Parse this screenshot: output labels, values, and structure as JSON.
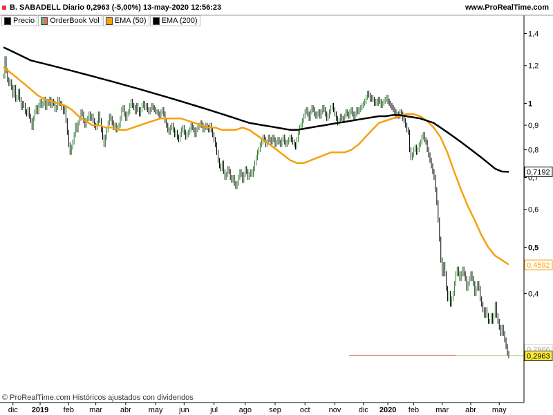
{
  "header": {
    "title": "B. SABADELL Diario 0,2963 (-5,00%) 13-may-2020 12:56:23",
    "brand": "www.ProRealTime.com"
  },
  "legend": [
    {
      "label": "Precio",
      "color": "#000000"
    },
    {
      "label": "OrderBook Vol",
      "color": "#66bb66"
    },
    {
      "label": "EMA (50)",
      "color": "#f5a10c"
    },
    {
      "label": "EMA (200)",
      "color": "#000000"
    }
  ],
  "footer": "© ProRealTime.com  Históricos ajustados con dividendos",
  "chart_data": {
    "type": "line",
    "yscale": "log",
    "ylim": [
      0.265,
      1.44
    ],
    "y_ticks": [
      {
        "value": 1.4,
        "label": "1,4",
        "bold": false
      },
      {
        "value": 1.2,
        "label": "1,2",
        "bold": false
      },
      {
        "value": 1.0,
        "label": "1",
        "bold": true
      },
      {
        "value": 0.9,
        "label": "0,9",
        "bold": false
      },
      {
        "value": 0.8,
        "label": "0,8",
        "bold": false
      },
      {
        "value": 0.7,
        "label": "0,7",
        "bold": false
      },
      {
        "value": 0.6,
        "label": "0,6",
        "bold": false
      },
      {
        "value": 0.5,
        "label": "0,5",
        "bold": true
      },
      {
        "value": 0.4,
        "label": "0,4",
        "bold": false
      }
    ],
    "x_ticks": [
      {
        "label": "dic",
        "bold": false
      },
      {
        "label": "2019",
        "bold": true
      },
      {
        "label": "feb",
        "bold": false
      },
      {
        "label": "mar",
        "bold": false
      },
      {
        "label": "abr",
        "bold": false
      },
      {
        "label": "may",
        "bold": false
      },
      {
        "label": "jun",
        "bold": false
      },
      {
        "label": "jul",
        "bold": false
      },
      {
        "label": "ago",
        "bold": false
      },
      {
        "label": "sep",
        "bold": false
      },
      {
        "label": "oct",
        "bold": false
      },
      {
        "label": "nov",
        "bold": false
      },
      {
        "label": "dic",
        "bold": false
      },
      {
        "label": "2020",
        "bold": true
      },
      {
        "label": "feb",
        "bold": false
      },
      {
        "label": "mar",
        "bold": false
      },
      {
        "label": "abr",
        "bold": false
      },
      {
        "label": "may",
        "bold": false
      }
    ],
    "x_tick_index": [
      7,
      27,
      48,
      68,
      90,
      112,
      133,
      155,
      178,
      200,
      222,
      244,
      265,
      283,
      302,
      323,
      344,
      365
    ],
    "price": [
      1.14,
      1.24,
      1.17,
      1.12,
      1.1,
      1.11,
      1.08,
      1.04,
      1.08,
      1.02,
      1.03,
      1.06,
      1.02,
      0.98,
      1.0,
      0.99,
      0.96,
      0.95,
      0.97,
      0.94,
      0.92,
      0.89,
      0.93,
      0.96,
      0.98,
      0.96,
      0.99,
      1.01,
      0.99,
      1.0,
      1.02,
      0.98,
      1.01,
      1.0,
      1.02,
      0.99,
      1.01,
      1.0,
      0.97,
      0.98,
      1.02,
      1.0,
      1.0,
      0.98,
      0.96,
      0.98,
      0.92,
      0.87,
      0.82,
      0.79,
      0.81,
      0.83,
      0.86,
      0.9,
      0.88,
      0.91,
      0.93,
      0.96,
      0.95,
      0.92,
      0.9,
      0.92,
      0.93,
      0.95,
      0.93,
      0.94,
      0.92,
      0.9,
      0.89,
      0.91,
      0.95,
      0.92,
      0.88,
      0.85,
      0.82,
      0.85,
      0.88,
      0.91,
      0.94,
      0.93,
      0.91,
      0.89,
      0.9,
      0.88,
      0.89,
      0.9,
      0.93,
      0.97,
      0.98,
      0.95,
      0.93,
      0.95,
      0.96,
      0.99,
      1.01,
      0.99,
      0.98,
      0.96,
      0.99,
      0.97,
      0.95,
      0.97,
      0.99,
      1.0,
      0.98,
      0.99,
      0.97,
      0.96,
      0.97,
      0.99,
      0.98,
      0.97,
      0.96,
      0.96,
      0.95,
      0.94,
      0.96,
      0.97,
      0.95,
      0.92,
      0.9,
      0.88,
      0.87,
      0.89,
      0.9,
      0.88,
      0.86,
      0.87,
      0.85,
      0.84,
      0.86,
      0.88,
      0.89,
      0.87,
      0.85,
      0.86,
      0.87,
      0.88,
      0.9,
      0.89,
      0.88,
      0.86,
      0.88,
      0.89,
      0.9,
      0.91,
      0.9,
      0.88,
      0.89,
      0.9,
      0.89,
      0.88,
      0.9,
      0.88,
      0.86,
      0.84,
      0.82,
      0.79,
      0.76,
      0.74,
      0.73,
      0.75,
      0.72,
      0.7,
      0.71,
      0.73,
      0.72,
      0.7,
      0.69,
      0.7,
      0.68,
      0.67,
      0.68,
      0.7,
      0.72,
      0.71,
      0.69,
      0.71,
      0.73,
      0.72,
      0.7,
      0.71,
      0.72,
      0.71,
      0.73,
      0.75,
      0.77,
      0.79,
      0.8,
      0.82,
      0.83,
      0.85,
      0.84,
      0.82,
      0.83,
      0.85,
      0.84,
      0.83,
      0.85,
      0.84,
      0.82,
      0.83,
      0.84,
      0.83,
      0.82,
      0.84,
      0.85,
      0.83,
      0.82,
      0.83,
      0.84,
      0.85,
      0.84,
      0.83,
      0.82,
      0.81,
      0.84,
      0.87,
      0.89,
      0.9,
      0.92,
      0.94,
      0.96,
      0.97,
      0.95,
      0.93,
      0.96,
      0.98,
      0.97,
      0.95,
      0.94,
      0.95,
      0.96,
      0.94,
      0.96,
      0.98,
      0.97,
      0.95,
      0.93,
      0.94,
      0.96,
      0.98,
      0.99,
      0.97,
      0.95,
      0.93,
      0.91,
      0.92,
      0.94,
      0.93,
      0.92,
      0.94,
      0.96,
      0.95,
      0.94,
      0.96,
      0.97,
      0.95,
      0.93,
      0.95,
      0.97,
      0.96,
      0.97,
      0.98,
      0.99,
      1.0,
      1.01,
      1.03,
      1.05,
      1.04,
      1.02,
      1.03,
      1.02,
      1.0,
      1.01,
      1.0,
      1.02,
      1.01,
      0.99,
      1.0,
      1.01,
      1.02,
      1.03,
      1.01,
      1.0,
      0.99,
      0.98,
      0.97,
      0.96,
      0.94,
      0.95,
      0.94,
      0.96,
      0.95,
      0.93,
      0.92,
      0.9,
      0.88,
      0.87,
      0.8,
      0.77,
      0.78,
      0.8,
      0.81,
      0.79,
      0.8,
      0.82,
      0.83,
      0.85,
      0.86,
      0.84,
      0.83,
      0.8,
      0.78,
      0.76,
      0.74,
      0.72,
      0.7,
      0.66,
      0.62,
      0.57,
      0.52,
      0.47,
      0.44,
      0.46,
      0.44,
      0.41,
      0.39,
      0.4,
      0.38,
      0.39,
      0.4,
      0.42,
      0.44,
      0.45,
      0.44,
      0.43,
      0.44,
      0.45,
      0.44,
      0.43,
      0.41,
      0.42,
      0.43,
      0.44,
      0.43,
      0.42,
      0.4,
      0.41,
      0.42,
      0.41,
      0.39,
      0.38,
      0.37,
      0.36,
      0.37,
      0.36,
      0.35,
      0.35,
      0.36,
      0.35,
      0.36,
      0.38,
      0.36,
      0.35,
      0.34,
      0.33,
      0.34,
      0.33,
      0.32,
      0.31,
      0.3,
      0.2963
    ],
    "series": [
      {
        "name": "EMA (50)",
        "color": "#f5a10c",
        "values": [
          1.19,
          1.16,
          1.13,
          1.1,
          1.07,
          1.04,
          1.02,
          1.01,
          1.0,
          0.99,
          0.97,
          0.94,
          0.92,
          0.9,
          0.9,
          0.89,
          0.89,
          0.88,
          0.88,
          0.89,
          0.9,
          0.91,
          0.92,
          0.93,
          0.93,
          0.93,
          0.93,
          0.92,
          0.91,
          0.9,
          0.89,
          0.89,
          0.88,
          0.88,
          0.88,
          0.89,
          0.88,
          0.86,
          0.84,
          0.82,
          0.8,
          0.78,
          0.76,
          0.75,
          0.75,
          0.76,
          0.77,
          0.78,
          0.79,
          0.79,
          0.79,
          0.8,
          0.82,
          0.85,
          0.88,
          0.91,
          0.92,
          0.93,
          0.94,
          0.95,
          0.95,
          0.94,
          0.92,
          0.89,
          0.85,
          0.79,
          0.72,
          0.66,
          0.61,
          0.57,
          0.53,
          0.5,
          0.48,
          0.47,
          0.46
        ]
      },
      {
        "name": "EMA (200)",
        "color": "#000000",
        "values": [
          1.31,
          1.29,
          1.27,
          1.25,
          1.23,
          1.22,
          1.21,
          1.2,
          1.19,
          1.18,
          1.17,
          1.16,
          1.15,
          1.14,
          1.13,
          1.12,
          1.11,
          1.1,
          1.09,
          1.08,
          1.07,
          1.06,
          1.05,
          1.04,
          1.03,
          1.02,
          1.01,
          1.0,
          0.99,
          0.98,
          0.97,
          0.96,
          0.95,
          0.94,
          0.93,
          0.92,
          0.91,
          0.905,
          0.9,
          0.895,
          0.89,
          0.885,
          0.88,
          0.88,
          0.885,
          0.89,
          0.895,
          0.9,
          0.905,
          0.91,
          0.915,
          0.92,
          0.925,
          0.93,
          0.935,
          0.94,
          0.94,
          0.945,
          0.945,
          0.94,
          0.935,
          0.93,
          0.92,
          0.91,
          0.89,
          0.87,
          0.85,
          0.83,
          0.81,
          0.79,
          0.77,
          0.75,
          0.73,
          0.72,
          0.7192
        ]
      }
    ],
    "value_labels": [
      {
        "label": "0,7192",
        "value": 0.7192,
        "color": "#000000",
        "bg": "#ffffff",
        "border": "#000000"
      },
      {
        "label": "0,4592",
        "value": 0.4592,
        "color": "#f5a10c",
        "bg": "#ffffff",
        "border": "#f5a10c"
      },
      {
        "label": "0,2966",
        "value": 0.2966,
        "color": "#aaaaaa",
        "bg": "#ffffff",
        "border": "#cccccc"
      },
      {
        "label": "0,2963",
        "value": 0.2963,
        "color": "#000000",
        "bg": "#ffeb3b",
        "border": "#333333"
      }
    ],
    "price_line": {
      "value": 0.2963,
      "color": "#d34040"
    }
  }
}
